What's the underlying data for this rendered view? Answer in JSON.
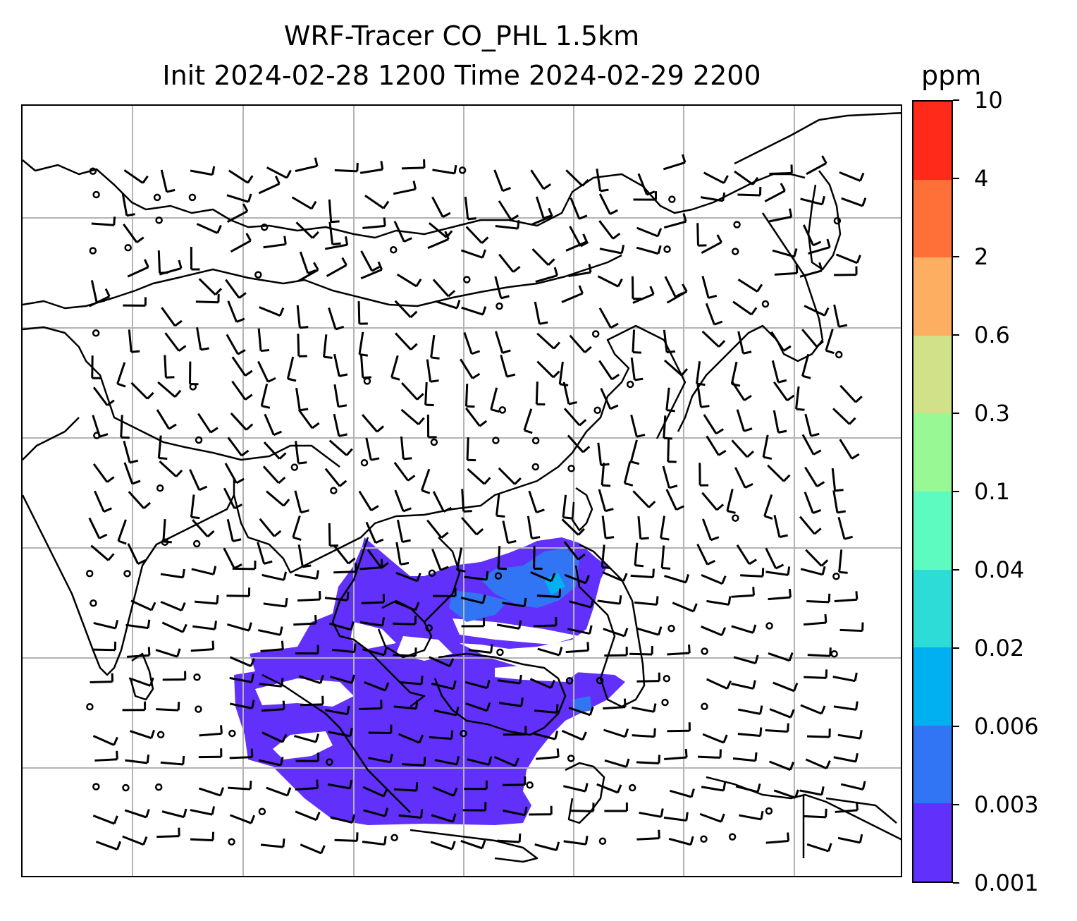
{
  "title": {
    "line1": "WRF-Tracer CO_PHL 1.5km",
    "line2": "Init 2024-02-28 1200 Time 2024-02-29 2200"
  },
  "colorbar": {
    "unit": "ppm",
    "ticks": [
      "10",
      "4",
      "2",
      "0.6",
      "0.3",
      "0.1",
      "0.04",
      "0.02",
      "0.006",
      "0.003",
      "0.001"
    ],
    "colors": [
      "#ff2a1a",
      "#ff7038",
      "#fdae61",
      "#d0e189",
      "#97f894",
      "#5efbc0",
      "#2ddcd7",
      "#00b0f0",
      "#3175f5",
      "#6130fb"
    ]
  },
  "map": {
    "background": "#ffffff",
    "gridline_color": "#b3b3b3",
    "coastline_color": "#000000",
    "plume_color_main": "#6130fb",
    "plume_color_secondary": "#3175f5",
    "plume_color_tertiary": "#00b0f0"
  }
}
